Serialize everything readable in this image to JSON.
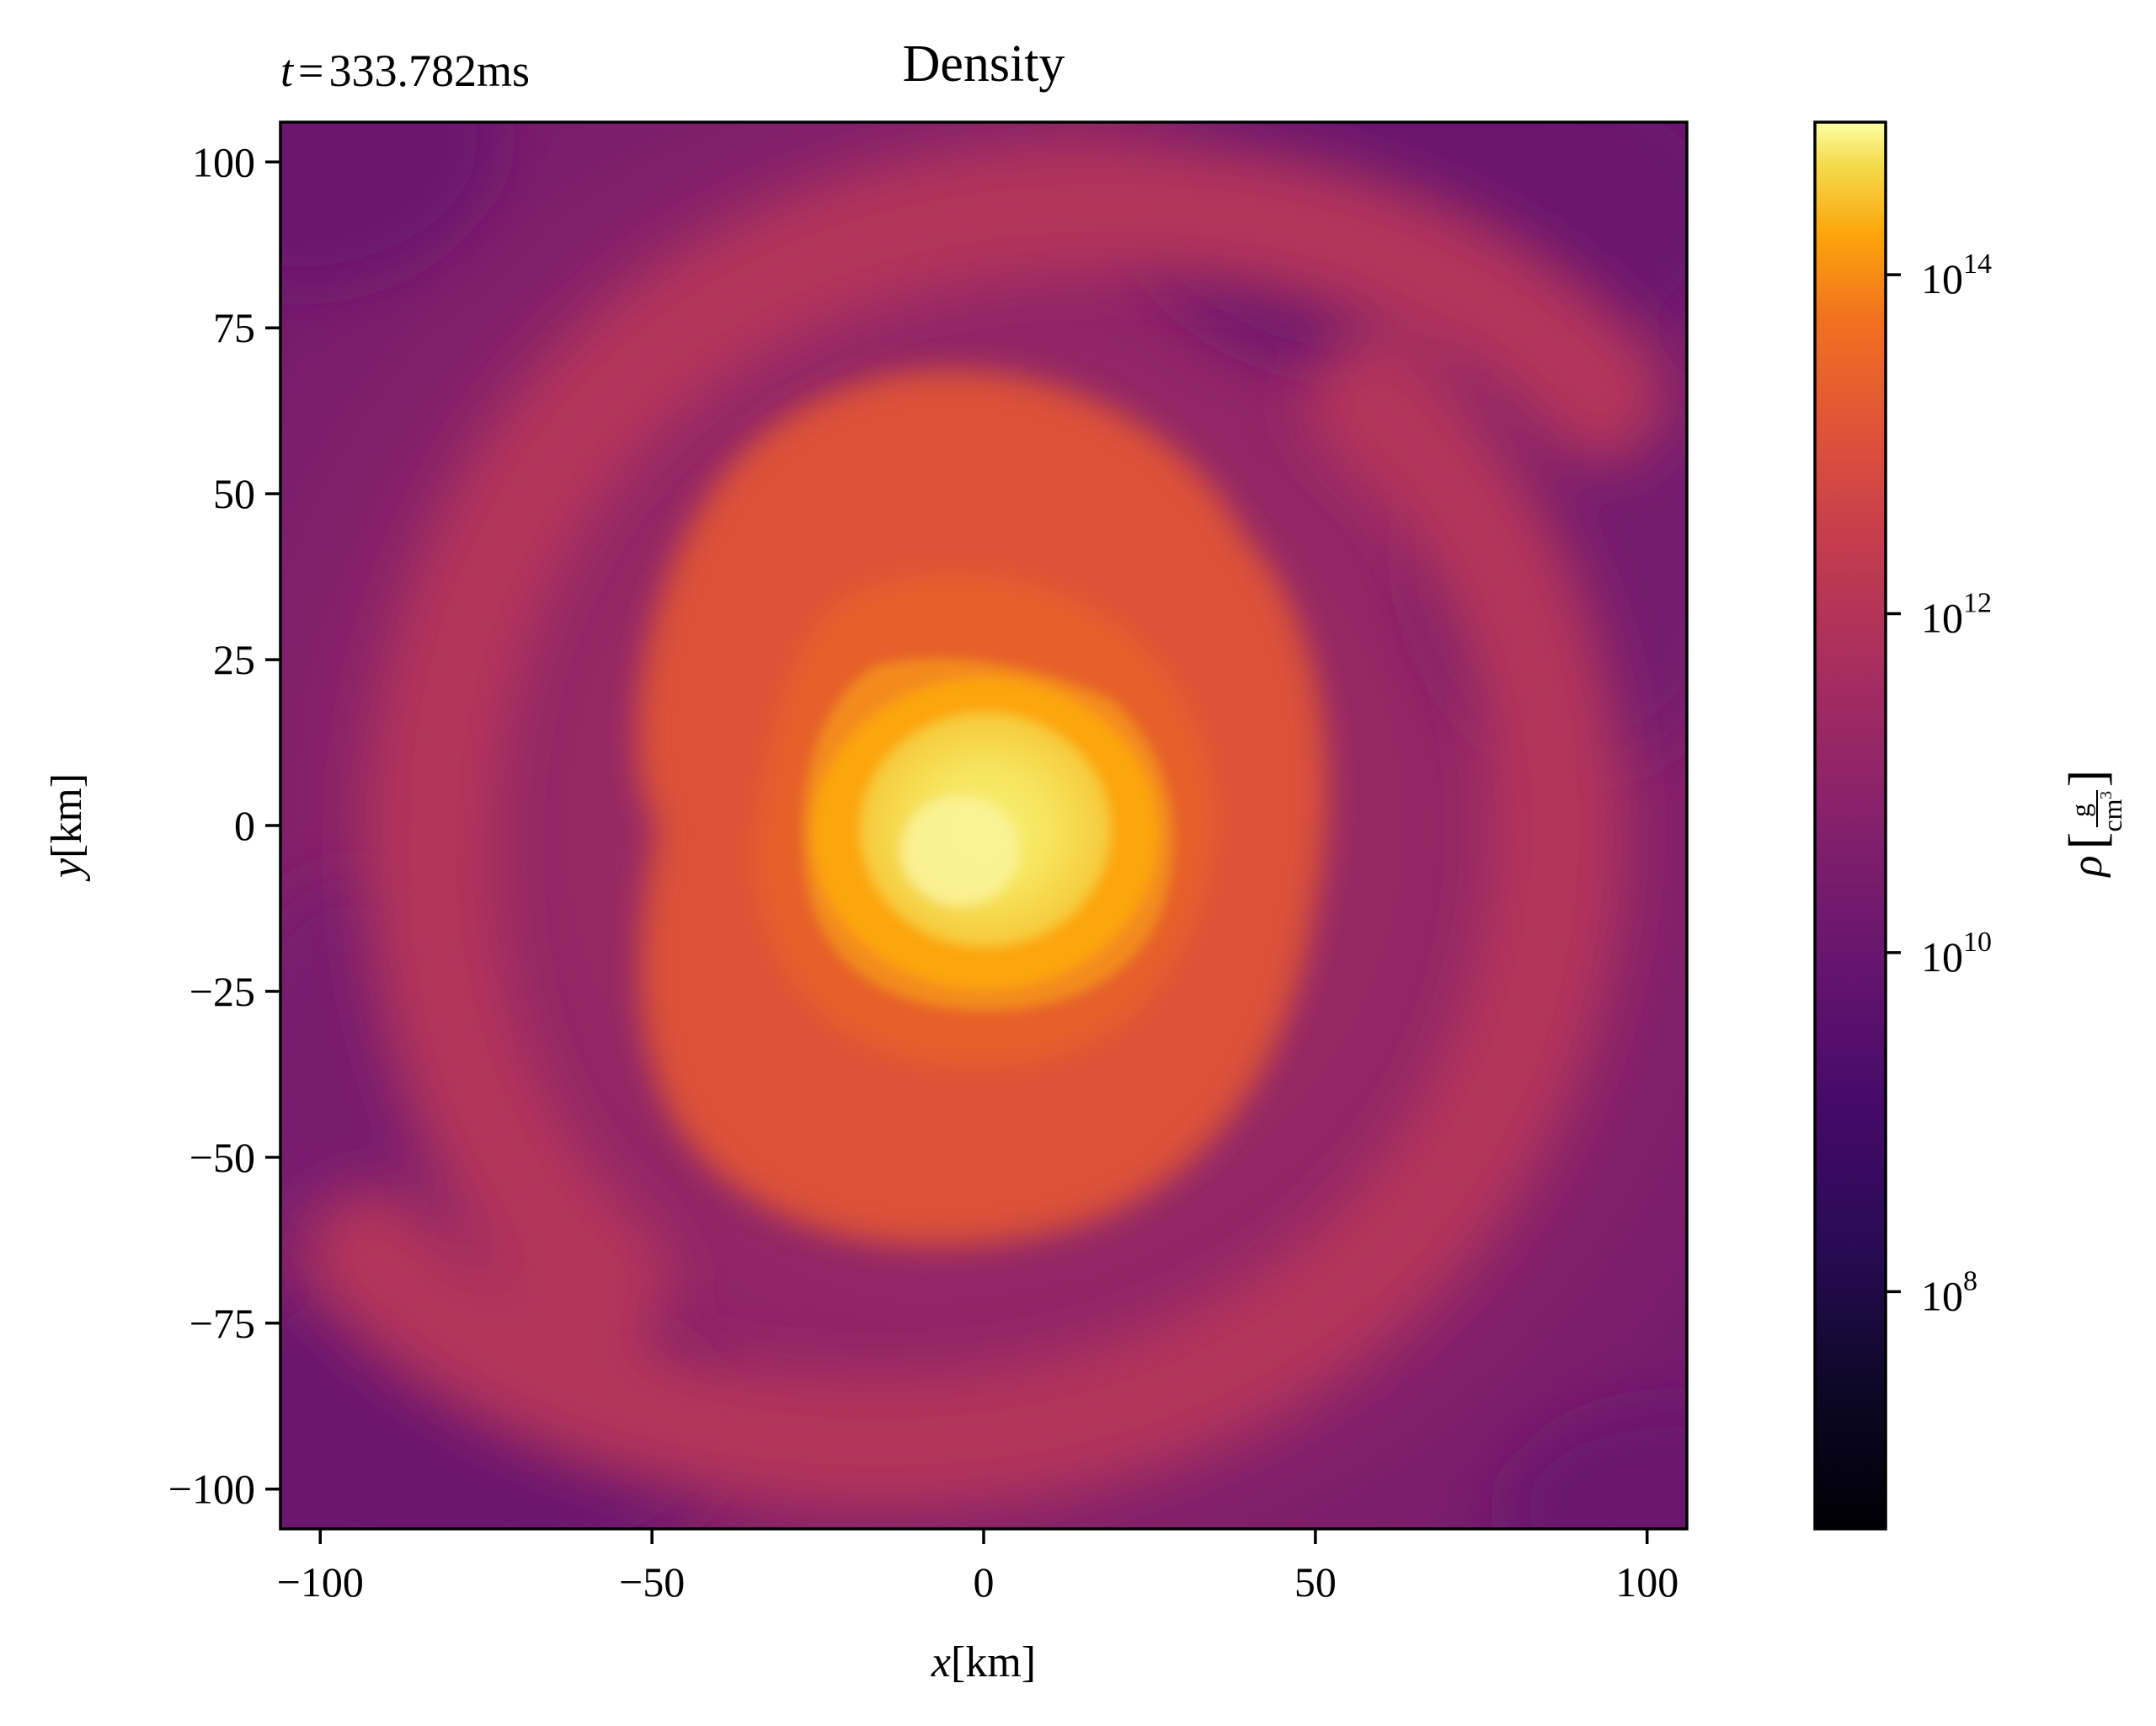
{
  "chart_data": {
    "type": "heatmap",
    "title": "Density",
    "time_label": {
      "var": "t",
      "eq": "=",
      "value": "333.782ms"
    },
    "xlabel": {
      "var": "x",
      "unit": "[km]"
    },
    "ylabel": {
      "var": "y",
      "unit": "[km]"
    },
    "xlim": [
      -106,
      106
    ],
    "ylim": [
      -106,
      106
    ],
    "xticks": [
      -100,
      -50,
      0,
      50,
      100
    ],
    "xtick_labels": [
      "−100",
      "−50",
      "0",
      "50",
      "100"
    ],
    "yticks": [
      100,
      75,
      50,
      25,
      0,
      -25,
      -50,
      -75,
      -100
    ],
    "ytick_labels": [
      "100",
      "75",
      "50",
      "25",
      "0",
      "−25",
      "−50",
      "−75",
      "−100"
    ],
    "colorbar": {
      "colormap": "inferno",
      "scale": "log",
      "range_exponent": [
        6.6,
        14.9
      ],
      "tick_exponents": [
        14,
        12,
        10,
        8
      ],
      "tick_labels": [
        {
          "base": "10",
          "exp": "14"
        },
        {
          "base": "10",
          "exp": "12"
        },
        {
          "base": "10",
          "exp": "10"
        },
        {
          "base": "10",
          "exp": "8"
        }
      ],
      "label": {
        "symbol": "ρ",
        "numerator": "g",
        "denominator": "cm",
        "denominator_exp": "3"
      }
    },
    "density_field": {
      "core_log10_rho": 14.4,
      "inner_orange_log10_rho": 13.4,
      "envelope_log10_rho": 12.0,
      "spiral_log10_rho": 11.0,
      "outer_log10_rho": 10.0,
      "edge_log10_rho": 9.6
    }
  }
}
